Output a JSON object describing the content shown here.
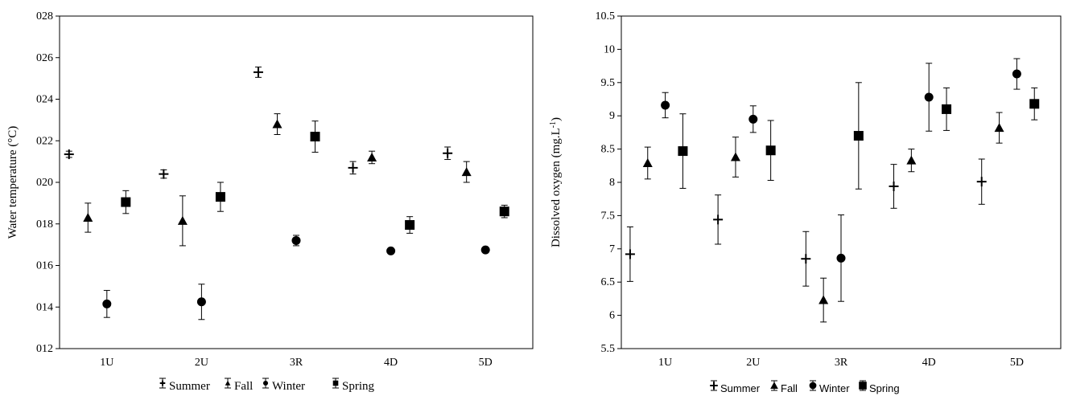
{
  "colors": {
    "ink": "#000000",
    "background": "#ffffff"
  },
  "chart_data": [
    {
      "type": "scatter",
      "title": "",
      "xlabel": "",
      "ylabel": "Water temperature (°C)",
      "ylim": [
        12,
        28
      ],
      "yticks": [
        12,
        14,
        16,
        18,
        20,
        22,
        24,
        26,
        28
      ],
      "ytick_labels": [
        "012",
        "014",
        "016",
        "018",
        "020",
        "022",
        "024",
        "026",
        "028"
      ],
      "categories": [
        "1U",
        "2U",
        "3R",
        "4D",
        "5D"
      ],
      "legend_position": "bottom",
      "grid": false,
      "series": [
        {
          "name": "Summer",
          "marker": "plus",
          "values": [
            21.35,
            20.4,
            25.3,
            20.7,
            21.4
          ],
          "err": [
            0.15,
            0.2,
            0.25,
            0.3,
            0.3
          ]
        },
        {
          "name": "Fall",
          "marker": "triangle",
          "values": [
            18.3,
            18.15,
            22.8,
            21.2,
            20.5
          ],
          "err": [
            0.7,
            1.2,
            0.5,
            0.3,
            0.5
          ]
        },
        {
          "name": "Winter",
          "marker": "circle",
          "values": [
            14.15,
            14.25,
            17.2,
            16.7,
            16.75
          ],
          "err": [
            0.65,
            0.85,
            0.25,
            0.1,
            0.1
          ]
        },
        {
          "name": "Spring",
          "marker": "square",
          "values": [
            19.05,
            19.3,
            22.2,
            17.95,
            18.6
          ],
          "err": [
            0.55,
            0.7,
            0.75,
            0.4,
            0.3
          ]
        }
      ]
    },
    {
      "type": "scatter",
      "title": "",
      "xlabel": "",
      "ylabel": "Dissolved oxygen (mg.L-1)",
      "ylabel_main": "Dissolved oxygen (mg.L",
      "ylabel_sup": "-1",
      "ylabel_end": ")",
      "ylim": [
        5.5,
        10.5
      ],
      "yticks": [
        5.5,
        6,
        6.5,
        7,
        7.5,
        8,
        8.5,
        9,
        9.5,
        10,
        10.5
      ],
      "ytick_labels": [
        "5.5",
        "6",
        "6.5",
        "7",
        "7.5",
        "8",
        "8.5",
        "9",
        "9.5",
        "10",
        "10.5"
      ],
      "categories": [
        "1U",
        "2U",
        "3R",
        "4D",
        "5D"
      ],
      "legend_position": "bottom",
      "grid": false,
      "series": [
        {
          "name": "Summer",
          "marker": "plus",
          "values": [
            6.92,
            7.44,
            6.85,
            7.94,
            8.01
          ],
          "err": [
            0.41,
            0.37,
            0.41,
            0.33,
            0.34
          ]
        },
        {
          "name": "Fall",
          "marker": "triangle",
          "values": [
            8.29,
            8.38,
            6.23,
            8.33,
            8.82
          ],
          "err": [
            0.24,
            0.3,
            0.33,
            0.17,
            0.23
          ]
        },
        {
          "name": "Winter",
          "marker": "circle",
          "values": [
            9.16,
            8.95,
            6.86,
            9.28,
            9.63
          ],
          "err": [
            0.19,
            0.2,
            0.65,
            0.51,
            0.23
          ]
        },
        {
          "name": "Spring",
          "marker": "square",
          "values": [
            8.47,
            8.48,
            8.7,
            9.1,
            9.18
          ],
          "err": [
            0.56,
            0.45,
            0.8,
            0.32,
            0.24
          ]
        }
      ]
    }
  ]
}
